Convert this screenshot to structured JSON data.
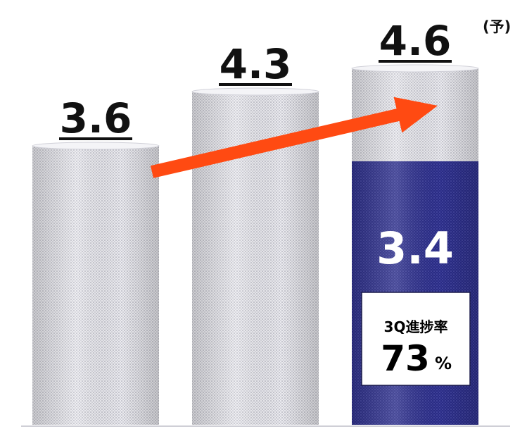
{
  "chart_data": {
    "type": "bar",
    "categories": [
      "",
      "",
      ""
    ],
    "values": [
      3.6,
      4.3,
      4.6
    ],
    "value_labels": [
      "3.6",
      "4.3",
      "4.6"
    ],
    "forecast_marker": "(予)",
    "progress": {
      "value": 3.4,
      "label": "3.4",
      "note_title": "3Q進捗率",
      "note_value": "73",
      "note_unit": "%"
    },
    "trend_arrow": true,
    "title": "",
    "xlabel": "",
    "ylabel": "",
    "ylim": [
      0,
      4.6
    ],
    "grid": false,
    "colors": {
      "bar_fill": "#e9e9ee",
      "bar_dots": "#9a9aa8",
      "progress_fill": "#2a2c86",
      "progress_dots": "#6a6cc0",
      "arrow": "#ff4a12",
      "label_text": "#111111",
      "progress_text": "#ffffff"
    }
  }
}
